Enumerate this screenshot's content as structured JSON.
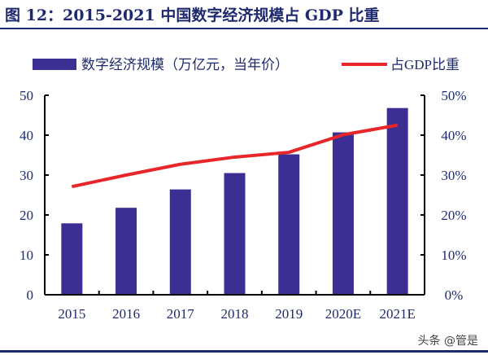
{
  "title": "图 12：2015-2021 中国数字经济规模占 GDP 比重",
  "watermark": "头条 @管是",
  "colors": {
    "bar": "#3b2f93",
    "line": "#e8262a",
    "text": "#1f2a6e"
  },
  "chart_data": {
    "type": "bar+line",
    "title": "图 12：2015-2021 中国数字经济规模占 GDP 比重",
    "categories": [
      "2015",
      "2016",
      "2017",
      "2018",
      "2019",
      "2020E",
      "2021E"
    ],
    "series": [
      {
        "name": "数字经济规模（万亿元，当年价）",
        "type": "bar",
        "axis": "left",
        "values": [
          17.9,
          21.8,
          26.4,
          30.5,
          35.2,
          40.7,
          46.8
        ]
      },
      {
        "name": "占GDP比重",
        "type": "line",
        "axis": "right",
        "values": [
          27.1,
          30.0,
          32.7,
          34.5,
          35.7,
          40.1,
          42.5
        ]
      }
    ],
    "ylim": [
      0,
      50
    ],
    "yticks": [
      "0",
      "10",
      "20",
      "30",
      "40",
      "50"
    ],
    "y2lim": [
      0,
      50
    ],
    "y2ticks": [
      "0%",
      "10%",
      "20%",
      "30%",
      "40%",
      "50%"
    ],
    "legend": "top",
    "grid": false
  }
}
